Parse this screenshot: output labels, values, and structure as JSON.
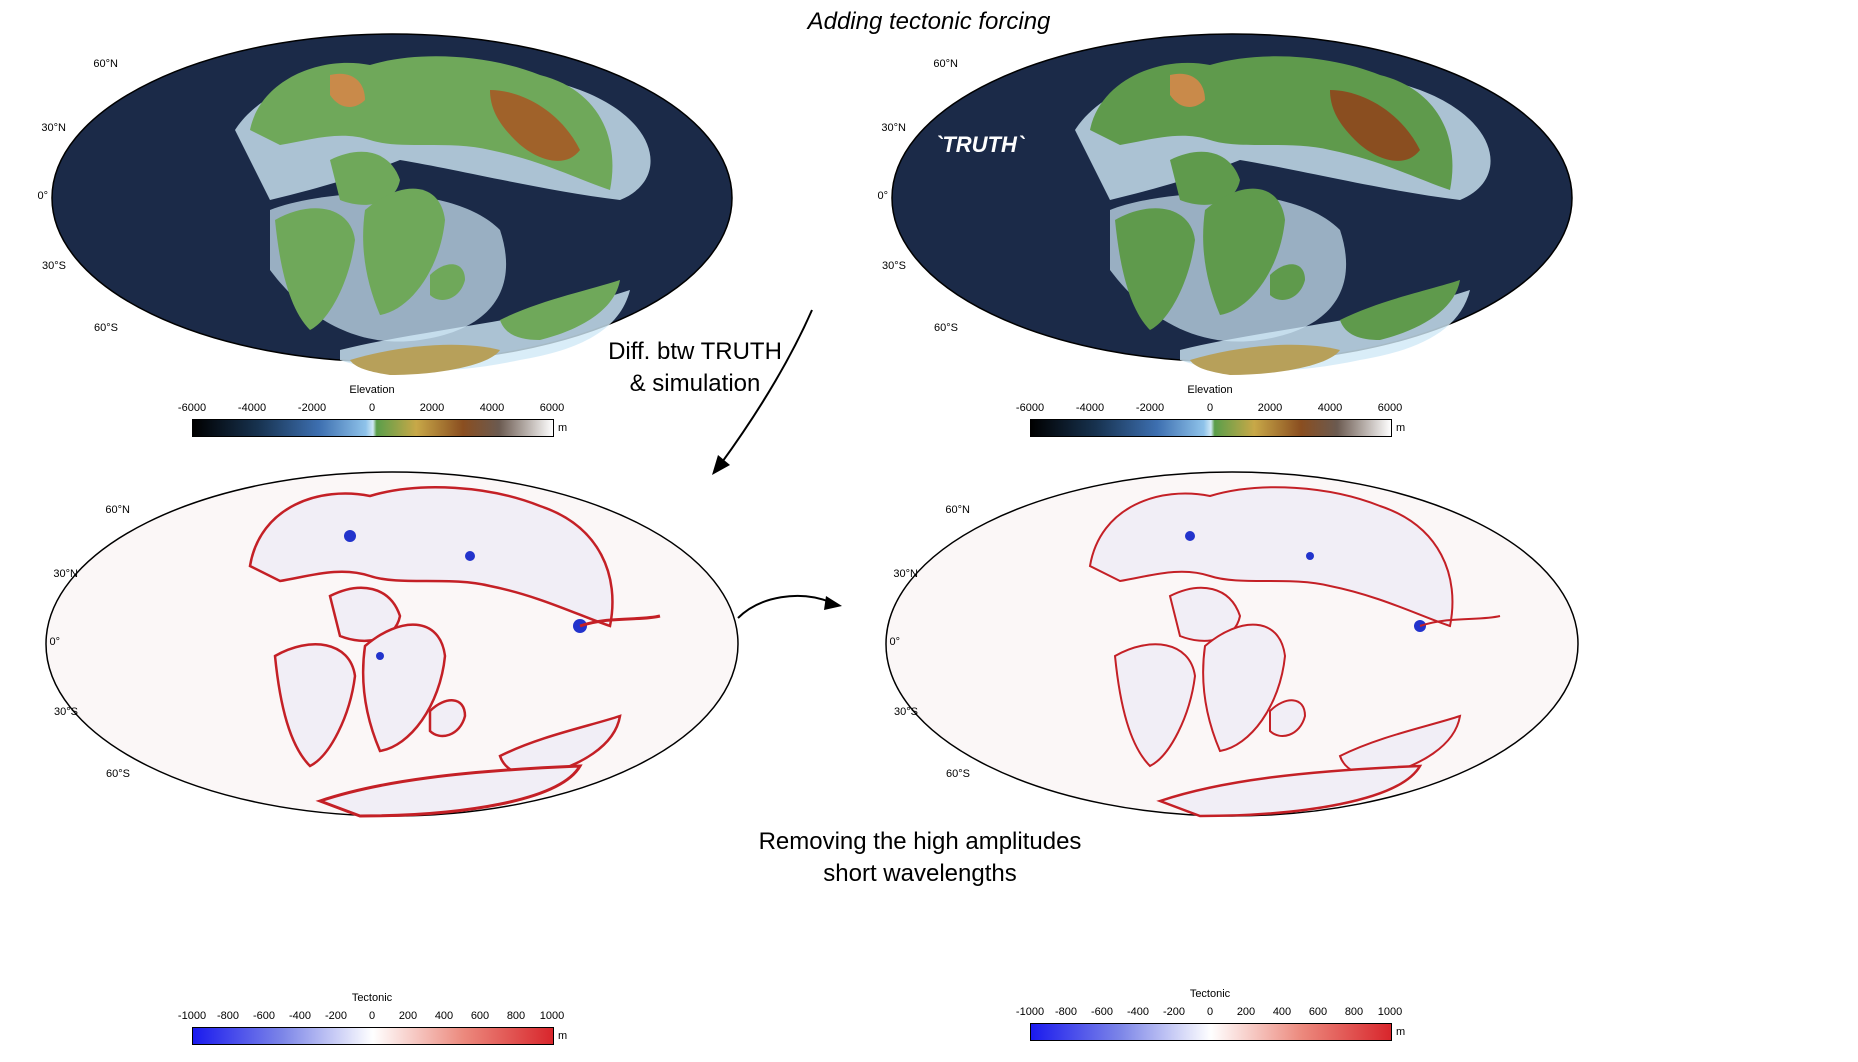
{
  "heading": "Adding tectonic forcing",
  "truth_label": "`TRUTH`",
  "diff_note": {
    "line1": "Diff. btw TRUTH",
    "line2": "& simulation"
  },
  "removal_note": {
    "line1": "Removing the high amplitudes",
    "line2": "short wavelengths"
  },
  "latitude_labels": [
    "60°N",
    "30°N",
    "0°",
    "30°S",
    "60°S"
  ],
  "elevation_colorbar": {
    "title": "Elevation",
    "unit": "m",
    "ticks": [
      "-6000",
      "-4000",
      "-2000",
      "0",
      "2000",
      "4000",
      "6000"
    ]
  },
  "tectonic_colorbar": {
    "title": "Tectonic",
    "unit": "m",
    "ticks": [
      "-1000",
      "-800",
      "-600",
      "-400",
      "-200",
      "0",
      "200",
      "400",
      "600",
      "800",
      "1000"
    ]
  },
  "colors": {
    "ocean": "#1b2a48",
    "shelf": "#cfe8f6",
    "land": "#6fa85a",
    "highland": "#a0622a",
    "diff_red": "#d8262c",
    "diff_blue": "#2233cc"
  }
}
